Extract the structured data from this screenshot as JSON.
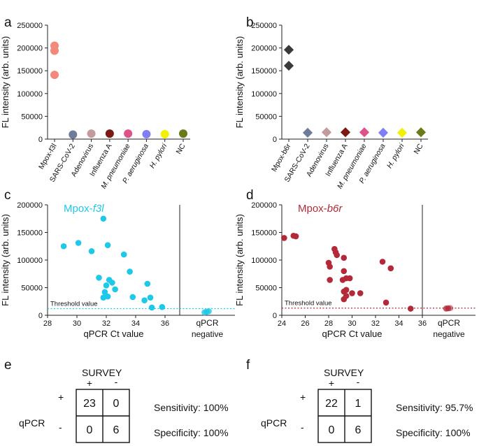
{
  "panel_labels": {
    "a": "a",
    "b": "b",
    "c": "c",
    "d": "d",
    "e": "e",
    "f": "f"
  },
  "colors": {
    "a_mpox": "#f28a7c",
    "b_mpox": "#3b3b3b",
    "sars": "#6e7b99",
    "adeno": "#c49a9a",
    "flu": "#7a1a12",
    "mpneu": "#e0508a",
    "paer": "#7f7ff5",
    "hpyl": "#f2f200",
    "nc": "#6b7a18",
    "cyan": "#1ec8e8",
    "crimson": "#b22a3a"
  },
  "chart_data": [
    {
      "id": "a",
      "type": "scatter",
      "ylabel": "FL intensity (arb. units)",
      "ylim": [
        0,
        250000
      ],
      "yticks": [
        "0",
        "50000",
        "100000",
        "150000",
        "200000",
        "250000"
      ],
      "categories": [
        "Mpox-f3l",
        "SARS-CoV-2",
        "Adenovirus",
        "Influenza A",
        "M. pneumoniae",
        "P. aeruginosa",
        "H. pylori",
        "NC"
      ],
      "series": [
        {
          "name": "Mpox-f3l",
          "values": [
            205000,
            194000,
            141000
          ],
          "color_key": "a_mpox"
        },
        {
          "name": "SARS-CoV-2",
          "values": [
            10000
          ],
          "color_key": "sars"
        },
        {
          "name": "Adenovirus",
          "values": [
            12000
          ],
          "color_key": "adeno"
        },
        {
          "name": "Influenza A",
          "values": [
            12000
          ],
          "color_key": "flu"
        },
        {
          "name": "M. pneumoniae",
          "values": [
            12000
          ],
          "color_key": "mpneu"
        },
        {
          "name": "P. aeruginosa",
          "values": [
            11000
          ],
          "color_key": "paer"
        },
        {
          "name": "H. pylori",
          "values": [
            11000
          ],
          "color_key": "hpyl"
        },
        {
          "name": "NC",
          "values": [
            12000
          ],
          "color_key": "nc"
        }
      ]
    },
    {
      "id": "b",
      "type": "scatter",
      "ylabel": "FL intensity (arb. units)",
      "ylim": [
        0,
        250000
      ],
      "yticks": [
        "0",
        "50000",
        "100000",
        "150000",
        "200000",
        "250000"
      ],
      "categories": [
        "Mpox-b6r",
        "SARS-CoV-2",
        "Adenovirus",
        "Influenza A",
        "M. pneumoniae",
        "P. aeruginosa",
        "H. pylori",
        "NC"
      ],
      "series": [
        {
          "name": "Mpox-b6r",
          "values": [
            196000,
            161000
          ],
          "color_key": "b_mpox"
        },
        {
          "name": "SARS-CoV-2",
          "values": [
            14000
          ],
          "color_key": "sars"
        },
        {
          "name": "Adenovirus",
          "values": [
            15000
          ],
          "color_key": "adeno"
        },
        {
          "name": "Influenza A",
          "values": [
            15000
          ],
          "color_key": "flu"
        },
        {
          "name": "M. pneumoniae",
          "values": [
            15000
          ],
          "color_key": "mpneu"
        },
        {
          "name": "P. aeruginosa",
          "values": [
            14000
          ],
          "color_key": "paer"
        },
        {
          "name": "H. pylori",
          "values": [
            14000
          ],
          "color_key": "hpyl"
        },
        {
          "name": "NC",
          "values": [
            15000
          ],
          "color_key": "nc"
        }
      ]
    },
    {
      "id": "c",
      "type": "scatter",
      "title_prefix": "Mpox-",
      "title_gene": "f3l",
      "xlabel": "qPCR Ct value",
      "ylabel": "FL intensity (arb. units)",
      "xlim": [
        28,
        37
      ],
      "ylim": [
        0,
        200000
      ],
      "xticks": [
        "28",
        "30",
        "32",
        "34",
        "36"
      ],
      "yticks": [
        "0",
        "50000",
        "100000",
        "150000",
        "200000"
      ],
      "threshold": 12000,
      "threshold_label": "Threshold value",
      "negative_label": [
        "qPCR",
        "negative"
      ],
      "color_key": "cyan",
      "points": [
        [
          29.1,
          125000
        ],
        [
          30.1,
          131000
        ],
        [
          31.0,
          116000
        ],
        [
          31.8,
          175000
        ],
        [
          32.1,
          127000
        ],
        [
          31.5,
          68000
        ],
        [
          32.0,
          54000
        ],
        [
          32.2,
          64000
        ],
        [
          32.4,
          59000
        ],
        [
          32.6,
          47000
        ],
        [
          31.9,
          42000
        ],
        [
          31.8,
          32000
        ],
        [
          32.1,
          34000
        ],
        [
          33.2,
          110000
        ],
        [
          33.6,
          79000
        ],
        [
          33.8,
          33000
        ],
        [
          34.8,
          57000
        ],
        [
          34.6,
          27000
        ],
        [
          35.0,
          32000
        ],
        [
          35.1,
          14000
        ],
        [
          35.8,
          15000
        ]
      ],
      "negative_points": [
        5000,
        6000,
        7000,
        5500,
        6500,
        7500
      ]
    },
    {
      "id": "d",
      "type": "scatter",
      "title_prefix": "Mpox-",
      "title_gene": "b6r",
      "xlabel": "qPCR Ct value",
      "ylabel": "FL intensity (arb. units)",
      "xlim": [
        24,
        36
      ],
      "ylim": [
        0,
        200000
      ],
      "xticks": [
        "24",
        "26",
        "28",
        "30",
        "32",
        "34",
        "36"
      ],
      "yticks": [
        "0",
        "50000",
        "100000",
        "150000",
        "200000"
      ],
      "threshold": 13000,
      "threshold_label": "Threshold value",
      "negative_label": [
        "qPCR",
        "negative"
      ],
      "color_key": "crimson",
      "points": [
        [
          24.2,
          140000
        ],
        [
          25.0,
          144000
        ],
        [
          25.2,
          143000
        ],
        [
          28.0,
          95000
        ],
        [
          28.1,
          88000
        ],
        [
          28.1,
          64000
        ],
        [
          28.5,
          120000
        ],
        [
          28.6,
          114000
        ],
        [
          28.7,
          109000
        ],
        [
          29.3,
          104000
        ],
        [
          29.3,
          80000
        ],
        [
          29.2,
          64000
        ],
        [
          29.5,
          67000
        ],
        [
          29.8,
          67000
        ],
        [
          29.5,
          46000
        ],
        [
          29.3,
          43000
        ],
        [
          29.5,
          35000
        ],
        [
          29.3,
          29000
        ],
        [
          30.0,
          40000
        ],
        [
          30.7,
          40000
        ],
        [
          32.6,
          97000
        ],
        [
          33.3,
          85000
        ],
        [
          32.9,
          23000
        ],
        [
          35.0,
          12000
        ]
      ],
      "negative_points": [
        12000,
        12500,
        13000,
        12200,
        12800
      ]
    }
  ],
  "tables": [
    {
      "id": "e",
      "survey": "SURVEY",
      "qpcr": "qPCR",
      "col_pos": "+",
      "col_neg": "-",
      "row_pos": "+",
      "row_neg": "-",
      "cells": [
        "23",
        "0",
        "0",
        "6"
      ],
      "sensitivity": "Sensitivity: 100%",
      "specificity": "Specificity: 100%"
    },
    {
      "id": "f",
      "survey": "SURVEY",
      "qpcr": "qPCR",
      "col_pos": "+",
      "col_neg": "-",
      "row_pos": "+",
      "row_neg": "-",
      "cells": [
        "22",
        "1",
        "0",
        "6"
      ],
      "sensitivity": "Sensitivity: 95.7%",
      "specificity": "Specificity: 100%"
    }
  ]
}
